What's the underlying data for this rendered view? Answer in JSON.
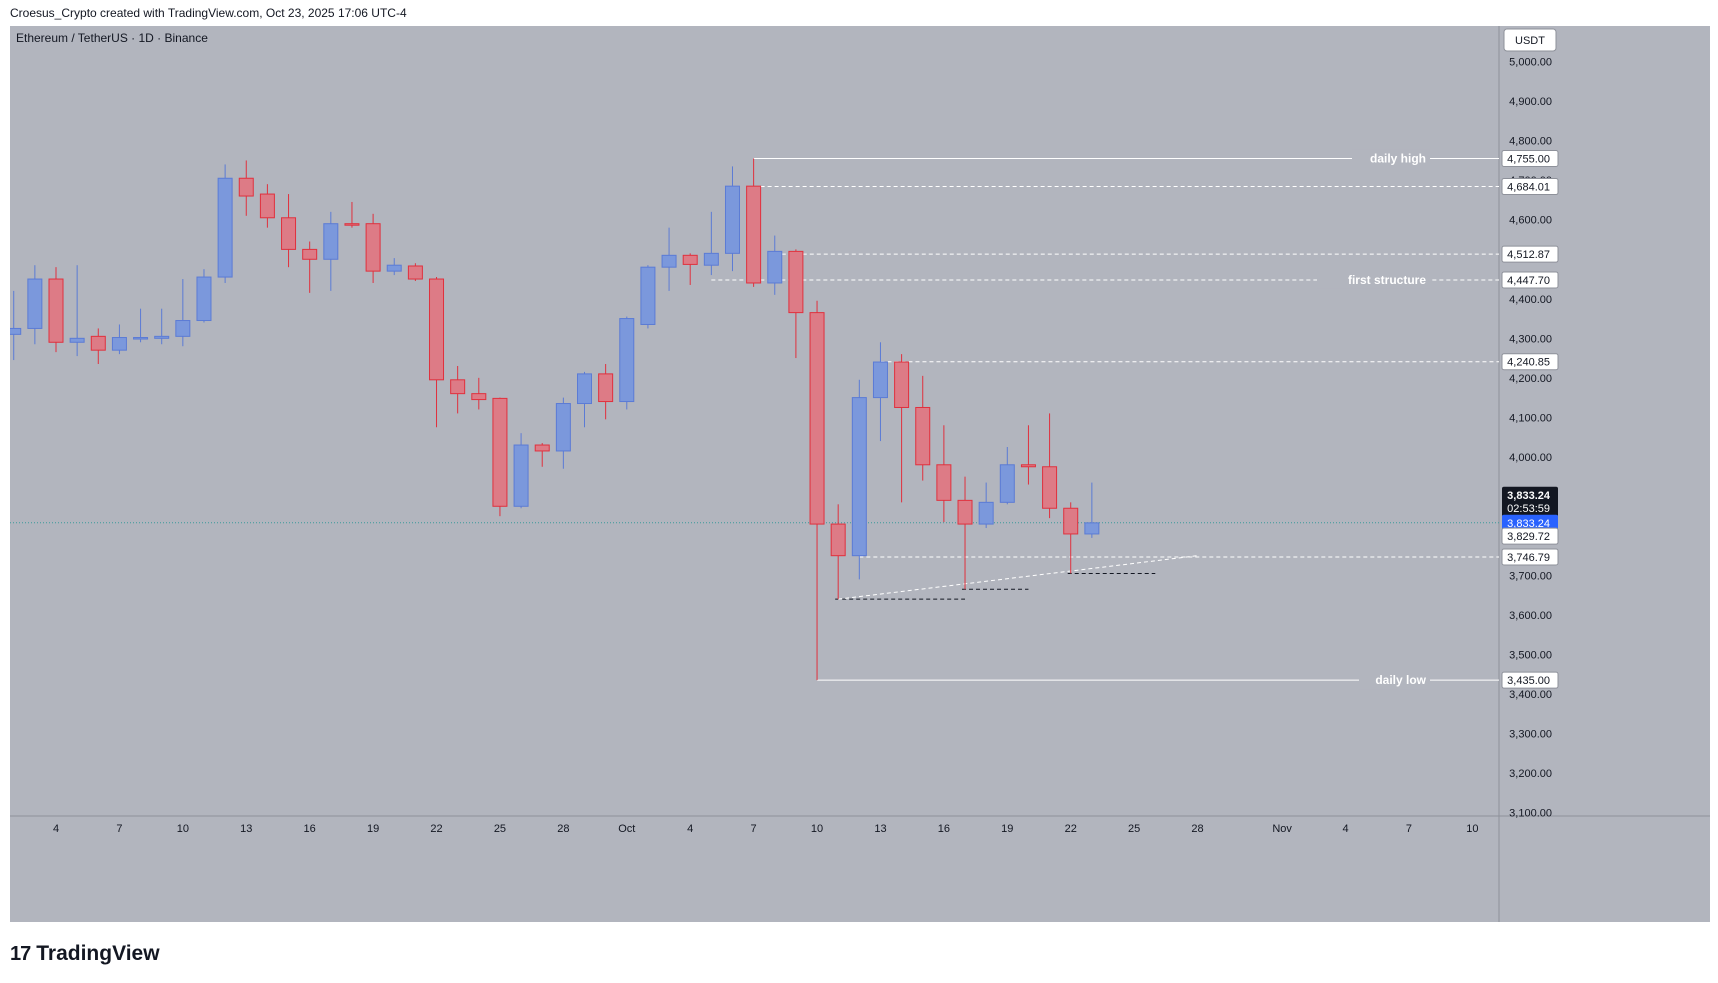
{
  "header": {
    "text": "Croesus_Crypto created with TradingView.com, Oct 23, 2025 17:06 UTC-4"
  },
  "chart_title": "Ethereum / TetherUS · 1D · Binance",
  "currency": "USDT",
  "brand": {
    "logo": "17",
    "name": "TradingView"
  },
  "colors": {
    "bg": "#b2b5be",
    "up": "#7b98dc",
    "down": "#dd7b86",
    "up_wick": "#5b7bd5",
    "down_wick": "#e0303d",
    "price_label": "#2962ff"
  },
  "chart_data": {
    "type": "candlestick",
    "ylim": [
      3100,
      5000
    ],
    "y_ticks": [
      "5,000.00",
      "4,900.00",
      "4,800.00",
      "4,700.00",
      "4,600.00",
      "4,400.00",
      "4,300.00",
      "4,200.00",
      "4,100.00",
      "4,000.00",
      "3,700.00",
      "3,600.00",
      "3,500.00",
      "3,400.00",
      "3,300.00",
      "3,200.00",
      "3,100.00"
    ],
    "y_tick_values": [
      5000,
      4900,
      4800,
      4700,
      4600,
      4400,
      4300,
      4200,
      4100,
      4000,
      3700,
      3600,
      3500,
      3400,
      3300,
      3200,
      3100
    ],
    "x_ticks": [
      {
        "label": "4",
        "day": 0
      },
      {
        "label": "7",
        "day": 3
      },
      {
        "label": "10",
        "day": 6
      },
      {
        "label": "13",
        "day": 9
      },
      {
        "label": "16",
        "day": 12
      },
      {
        "label": "19",
        "day": 15
      },
      {
        "label": "22",
        "day": 18
      },
      {
        "label": "25",
        "day": 21
      },
      {
        "label": "28",
        "day": 24
      },
      {
        "label": "Oct",
        "day": 27
      },
      {
        "label": "4",
        "day": 30
      },
      {
        "label": "7",
        "day": 33
      },
      {
        "label": "10",
        "day": 36
      },
      {
        "label": "13",
        "day": 39
      },
      {
        "label": "16",
        "day": 42
      },
      {
        "label": "19",
        "day": 45
      },
      {
        "label": "22",
        "day": 48
      },
      {
        "label": "25",
        "day": 51
      },
      {
        "label": "28",
        "day": 54
      },
      {
        "label": "Nov",
        "day": 58
      },
      {
        "label": "4",
        "day": 61
      },
      {
        "label": "7",
        "day": 64
      },
      {
        "label": "10",
        "day": 67
      }
    ],
    "candles": [
      {
        "day": -2,
        "o": 4310,
        "h": 4420,
        "l": 4245,
        "c": 4325
      },
      {
        "day": -1,
        "o": 4325,
        "h": 4485,
        "l": 4285,
        "c": 4450
      },
      {
        "day": 0,
        "o": 4450,
        "h": 4480,
        "l": 4265,
        "c": 4290
      },
      {
        "day": 1,
        "o": 4290,
        "h": 4485,
        "l": 4255,
        "c": 4300
      },
      {
        "day": 2,
        "o": 4305,
        "h": 4325,
        "l": 4235,
        "c": 4270
      },
      {
        "day": 3,
        "o": 4270,
        "h": 4335,
        "l": 4260,
        "c": 4302
      },
      {
        "day": 4,
        "o": 4300,
        "h": 4375,
        "l": 4290,
        "c": 4302
      },
      {
        "day": 5,
        "o": 4300,
        "h": 4375,
        "l": 4285,
        "c": 4305
      },
      {
        "day": 6,
        "o": 4305,
        "h": 4450,
        "l": 4280,
        "c": 4345
      },
      {
        "day": 7,
        "o": 4345,
        "h": 4475,
        "l": 4340,
        "c": 4455
      },
      {
        "day": 8,
        "o": 4455,
        "h": 4740,
        "l": 4440,
        "c": 4705
      },
      {
        "day": 9,
        "o": 4705,
        "h": 4750,
        "l": 4610,
        "c": 4660
      },
      {
        "day": 10,
        "o": 4665,
        "h": 4690,
        "l": 4580,
        "c": 4605
      },
      {
        "day": 11,
        "o": 4605,
        "h": 4665,
        "l": 4480,
        "c": 4525
      },
      {
        "day": 12,
        "o": 4525,
        "h": 4545,
        "l": 4415,
        "c": 4500
      },
      {
        "day": 13,
        "o": 4500,
        "h": 4620,
        "l": 4420,
        "c": 4590
      },
      {
        "day": 14,
        "o": 4590,
        "h": 4645,
        "l": 4580,
        "c": 4588
      },
      {
        "day": 15,
        "o": 4590,
        "h": 4615,
        "l": 4440,
        "c": 4470
      },
      {
        "day": 16,
        "o": 4470,
        "h": 4503,
        "l": 4460,
        "c": 4485
      },
      {
        "day": 17,
        "o": 4483,
        "h": 4490,
        "l": 4445,
        "c": 4450
      },
      {
        "day": 18,
        "o": 4450,
        "h": 4455,
        "l": 4075,
        "c": 4195
      },
      {
        "day": 19,
        "o": 4195,
        "h": 4230,
        "l": 4110,
        "c": 4160
      },
      {
        "day": 20,
        "o": 4160,
        "h": 4200,
        "l": 4120,
        "c": 4145
      },
      {
        "day": 21,
        "o": 4148,
        "h": 4150,
        "l": 3850,
        "c": 3875
      },
      {
        "day": 22,
        "o": 3875,
        "h": 4060,
        "l": 3870,
        "c": 4030
      },
      {
        "day": 23,
        "o": 4030,
        "h": 4035,
        "l": 3975,
        "c": 4015
      },
      {
        "day": 24,
        "o": 4015,
        "h": 4150,
        "l": 3970,
        "c": 4135
      },
      {
        "day": 25,
        "o": 4135,
        "h": 4215,
        "l": 4075,
        "c": 4210
      },
      {
        "day": 26,
        "o": 4210,
        "h": 4235,
        "l": 4095,
        "c": 4140
      },
      {
        "day": 27,
        "o": 4140,
        "h": 4355,
        "l": 4120,
        "c": 4350
      },
      {
        "day": 28,
        "o": 4335,
        "h": 4485,
        "l": 4325,
        "c": 4480
      },
      {
        "day": 29,
        "o": 4480,
        "h": 4580,
        "l": 4420,
        "c": 4510
      },
      {
        "day": 30,
        "o": 4510,
        "h": 4515,
        "l": 4435,
        "c": 4487
      },
      {
        "day": 31,
        "o": 4485,
        "h": 4620,
        "l": 4460,
        "c": 4515
      },
      {
        "day": 32,
        "o": 4515,
        "h": 4735,
        "l": 4470,
        "c": 4685
      },
      {
        "day": 33,
        "o": 4685,
        "h": 4755,
        "l": 4430,
        "c": 4440
      },
      {
        "day": 34,
        "o": 4440,
        "h": 4560,
        "l": 4410,
        "c": 4520
      },
      {
        "day": 35,
        "o": 4520,
        "h": 4525,
        "l": 4250,
        "c": 4365
      },
      {
        "day": 36,
        "o": 4365,
        "h": 4395,
        "l": 3435,
        "c": 3830
      },
      {
        "day": 37,
        "o": 3830,
        "h": 3880,
        "l": 3640,
        "c": 3750
      },
      {
        "day": 38,
        "o": 3750,
        "h": 4195,
        "l": 3690,
        "c": 4150
      },
      {
        "day": 39,
        "o": 4150,
        "h": 4290,
        "l": 4040,
        "c": 4240
      },
      {
        "day": 40,
        "o": 4240,
        "h": 4260,
        "l": 3885,
        "c": 4125
      },
      {
        "day": 41,
        "o": 4125,
        "h": 4205,
        "l": 3940,
        "c": 3980
      },
      {
        "day": 42,
        "o": 3980,
        "h": 4080,
        "l": 3835,
        "c": 3890
      },
      {
        "day": 43,
        "o": 3890,
        "h": 3950,
        "l": 3665,
        "c": 3830
      },
      {
        "day": 44,
        "o": 3830,
        "h": 3935,
        "l": 3820,
        "c": 3885
      },
      {
        "day": 45,
        "o": 3885,
        "h": 4025,
        "l": 3880,
        "c": 3980
      },
      {
        "day": 46,
        "o": 3980,
        "h": 4080,
        "l": 3930,
        "c": 3975
      },
      {
        "day": 47,
        "o": 3975,
        "h": 4110,
        "l": 3845,
        "c": 3870
      },
      {
        "day": 48,
        "o": 3870,
        "h": 3885,
        "l": 3705,
        "c": 3805
      },
      {
        "day": 49,
        "o": 3805,
        "h": 3935,
        "l": 3795,
        "c": 3833
      }
    ],
    "levels": [
      {
        "price": 4755,
        "label": "daily high",
        "price_label": "4,755.00",
        "style": "solid",
        "from_day": 33
      },
      {
        "price": 4684.01,
        "label": "",
        "price_label": "4,684.01",
        "style": "dashed",
        "from_day": 33
      },
      {
        "price": 4512.87,
        "label": "",
        "price_label": "4,512.87",
        "style": "dashed",
        "from_day": 34
      },
      {
        "price": 4447.7,
        "label": "first structure",
        "price_label": "4,447.70",
        "style": "dashed",
        "from_day": 31
      },
      {
        "price": 4240.85,
        "label": "",
        "price_label": "4,240.85",
        "style": "dashed",
        "from_day": 39
      },
      {
        "price": 3746.79,
        "label": "",
        "price_label": "3,746.79",
        "style": "dashed",
        "from_day": 38
      },
      {
        "price": 3435,
        "label": "daily low",
        "price_label": "3,435.00",
        "style": "solid",
        "from_day": 36
      }
    ],
    "current_price": {
      "value": 3833.24,
      "label": "3,833.24",
      "countdown": "02:53:59",
      "last_label": "3,833.24"
    },
    "extra_price_label": {
      "value": 3829.72,
      "label": "3,829.72"
    },
    "low_marks": [
      {
        "price": 3640,
        "from_day": 37,
        "to_day": 43
      },
      {
        "price": 3665,
        "from_day": 43,
        "to_day": 46
      },
      {
        "price": 3705,
        "from_day": 48,
        "to_day": 52
      }
    ],
    "trend_line": {
      "from_day": 37,
      "from_price": 3640,
      "to_day": 54,
      "to_price": 3750
    }
  }
}
